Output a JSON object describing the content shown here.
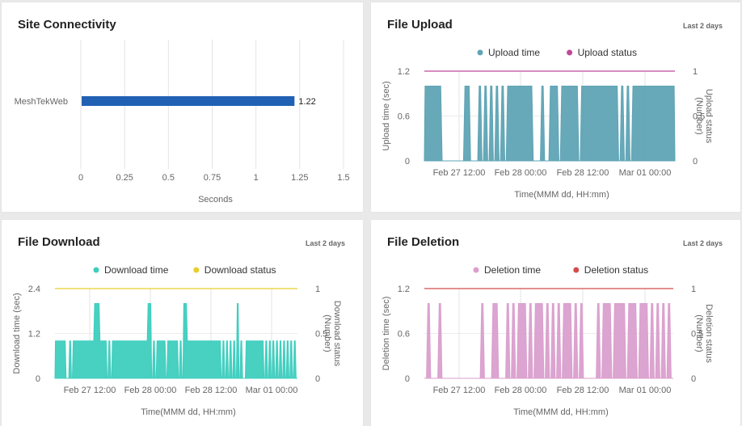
{
  "panels": {
    "site_connectivity": {
      "title": "Site Connectivity"
    },
    "file_upload": {
      "title": "File Upload",
      "range": "Last 2 days"
    },
    "file_download": {
      "title": "File Download",
      "range": "Last 2 days"
    },
    "file_deletion": {
      "title": "File Deletion",
      "range": "Last 2 days"
    }
  },
  "chart_data": [
    {
      "id": "site_connectivity",
      "type": "bar",
      "orientation": "horizontal",
      "title": "Site Connectivity",
      "categories": [
        "MeshTekWeb"
      ],
      "values": [
        1.22
      ],
      "value_labels": [
        "1.22"
      ],
      "xlabel": "Seconds",
      "xlim": [
        0,
        1.5
      ],
      "xticks": [
        "0",
        "0.25",
        "0.5",
        "0.75",
        "1",
        "1.25",
        "1.5"
      ],
      "color": "#2161b4",
      "grid": "vertical"
    },
    {
      "id": "file_upload",
      "type": "area",
      "title": "File Upload",
      "xlabel": "Time(MMM dd, HH:mm)",
      "ylabel": "Upload time (sec)",
      "ylabel2": "Upload status (Number)",
      "ylim": [
        0,
        1.2
      ],
      "yticks": [
        "0",
        "0.6",
        "1.2"
      ],
      "ylim2": [
        0,
        1
      ],
      "yticks2": [
        "0",
        "0.5",
        "1"
      ],
      "xticks": [
        "Feb 27 12:00",
        "Feb 28 00:00",
        "Feb 28 12:00",
        "Mar 01 00:00"
      ],
      "legend_placement": "top",
      "series": [
        {
          "name": "Upload time",
          "color": "#5fa4b5",
          "pattern": "1111110000000011000101010101011111111100010011101111110111111111111101010111111111111111"
        },
        {
          "name": "Upload status",
          "color": "#c2479a",
          "value": 1
        }
      ]
    },
    {
      "id": "file_download",
      "type": "area",
      "title": "File Download",
      "xlabel": "Time(MMM dd, HH:mm)",
      "ylabel": "Download time (sec)",
      "ylabel2": "Download status (Number)",
      "ylim": [
        0,
        2.4
      ],
      "yticks": [
        "0",
        "1.2",
        "2.4"
      ],
      "ylim2": [
        0,
        1
      ],
      "yticks2": [
        "0",
        "0.5",
        "1"
      ],
      "xticks": [
        "Feb 27 12:00",
        "Feb 28 00:00",
        "Feb 28 12:00",
        "Mar 01 00:00"
      ],
      "legend_placement": "top",
      "series": [
        {
          "name": "Download time",
          "color": "#3ecdbe",
          "pattern": "1111110010111111111111222111101011111111111111111111220101111101111110102211111111111111111110101010102010011111111110101010101010101010"
        },
        {
          "name": "Download status",
          "color": "#e8cf2a",
          "value": 1
        }
      ]
    },
    {
      "id": "file_deletion",
      "type": "area",
      "title": "File Deletion",
      "xlabel": "Time(MMM dd, HH:mm)",
      "ylabel": "Deletion time (sec)",
      "ylabel2": "Deletion status (Number)",
      "ylim": [
        0,
        1.2
      ],
      "yticks": [
        "0",
        "0.6",
        "1.2"
      ],
      "ylim2": [
        0,
        1
      ],
      "yticks2": [
        "0",
        "0.5",
        "1"
      ],
      "xticks": [
        "Feb 27 12:00",
        "Feb 28 00:00",
        "Feb 28 12:00",
        "Mar 01 00:00"
      ],
      "legend_placement": "top",
      "series": [
        {
          "name": "Deletion time",
          "color": "#da9fcd",
          "pattern": "0100010000000000000010001100010101110101110101010111010100000101110111101110111010101010"
        },
        {
          "name": "Deletion status",
          "color": "#d24c4c",
          "value": 1
        }
      ]
    }
  ]
}
